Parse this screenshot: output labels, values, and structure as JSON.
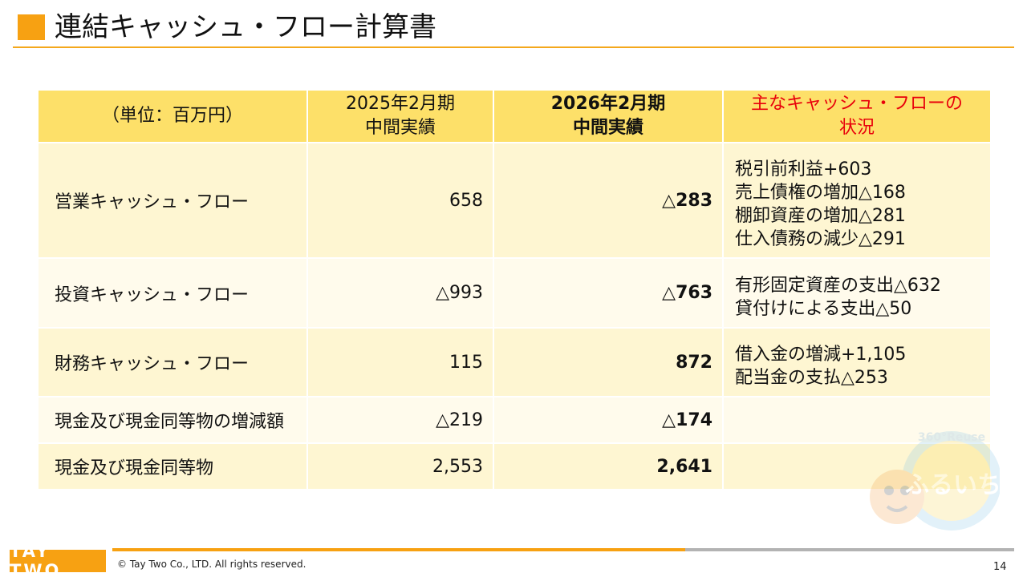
{
  "header": {
    "title": "連結キャッシュ・フロー計算書"
  },
  "table": {
    "columns": {
      "unit": "（単位：百万円）",
      "prev_line1": "2025年2月期",
      "prev_line2": "中間実績",
      "cur_line1": "2026年2月期",
      "cur_line2": "中間実績",
      "note_line1": "主なキャッシュ・フローの",
      "note_line2": "状況"
    },
    "rows": [
      {
        "label": "営業キャッシュ・フロー",
        "prev": "658",
        "cur": "△283",
        "notes": [
          "税引前利益+603",
          "売上債権の増加△168",
          "棚卸資産の増加△281",
          "仕入債務の減少△291"
        ]
      },
      {
        "label": "投資キャッシュ・フロー",
        "prev": "△993",
        "cur": "△763",
        "notes": [
          "有形固定資産の支出△632",
          "貸付けによる支出△50"
        ]
      },
      {
        "label": "財務キャッシュ・フロー",
        "prev": "115",
        "cur": "872",
        "notes": [
          "借入金の増減+1,105",
          "配当金の支払△253"
        ]
      },
      {
        "label": "現金及び現金同等物の増減額",
        "prev": "△219",
        "cur": "△174",
        "notes": []
      },
      {
        "label": "現金及び現金同等物",
        "prev": "2,553",
        "cur": "2,641",
        "notes": []
      }
    ]
  },
  "footer": {
    "logo": "TAY TWO",
    "copyright": "© Tay Two Co., LTD. All rights reserved.",
    "page_number": "14"
  },
  "watermark": {
    "text_top": "360°Reuse",
    "text_main": "ふるいち"
  },
  "colors": {
    "accent": "#f7a112",
    "header_fill": "#fde069",
    "row_odd": "#fef6d2",
    "row_even": "#fffbec",
    "note_header": "#e8000b"
  }
}
